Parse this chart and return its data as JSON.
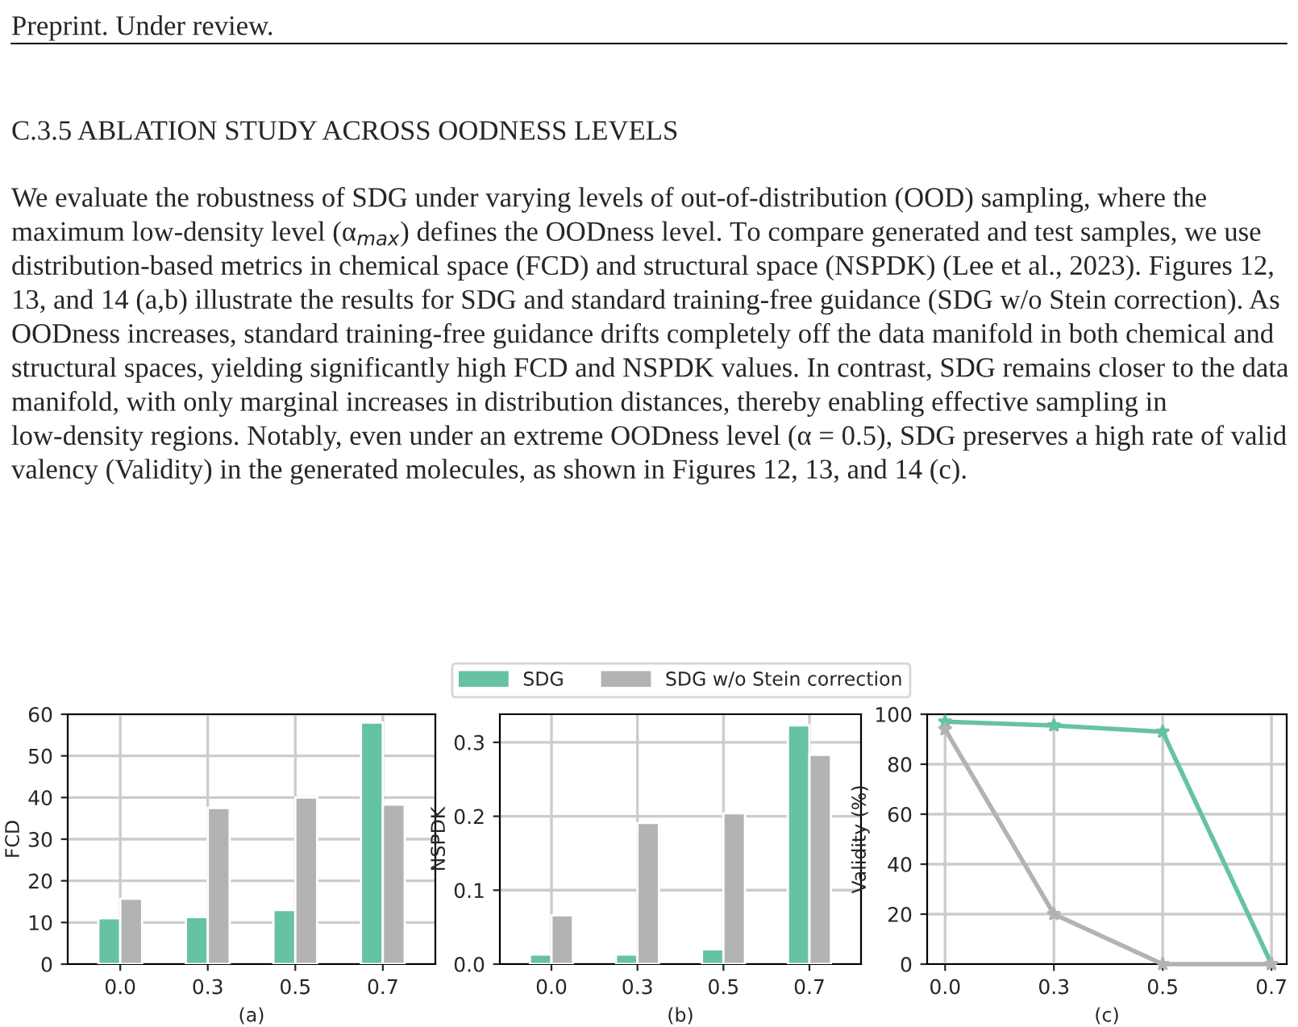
{
  "chart_data": [
    {
      "type": "bar",
      "xlabel": "(a)",
      "ylabel": "FCD",
      "categories": [
        "0.0",
        "0.3",
        "0.5",
        "0.7"
      ],
      "ylim": [
        0,
        60
      ],
      "yticks": [
        0,
        10,
        20,
        30,
        40,
        50,
        60
      ],
      "grid": true,
      "legend": "top right",
      "series": [
        {
          "name": "SDG",
          "color": "#66c2a5",
          "values": [
            11,
            11.3,
            13,
            58
          ]
        },
        {
          "name": "SDG w/o Stein correction",
          "color": "#b3b3b3",
          "values": [
            15.7,
            37.5,
            40,
            38.3
          ]
        }
      ],
      "annotations": [
        "Preprint. Under review.",
        "C.3.5 ABLATION STUDY ACROSS OODNESS LEVELS",
        "We evaluate the robustness of SDG under varying levels of out-of-distribution (OOD) sampling, where the maximum low-density level (α$_{max}$) defines the OODness level. To compare generated and test samples, we use distribution-based metrics in chemical space (FCD) and structural space (NSPDK) (Lee et al., 2023). Figures 12, 13, and 14 (a,b) illustrate the results for SDG and standard training-free guidance (SDG w/o Stein correction). As OODness increases, standard training-free guidance drifts completely off the data manifold in both chemical and structural spaces, yielding significantly high FCD and NSPDK values. In contrast, SDG remains closer to the data manifold, with only marginal increases in distribution distances, thereby enabling effective sampling in low-density regions. Notably, even under an extreme OODness level (α = 0.5), SDG preserves a high rate of valid valency (Validity) in the generated molecules, as shown in Figures 12, 13, and 14 (c)."
      ]
    },
    {
      "type": "bar",
      "xlabel": "(b)",
      "ylabel": "NSPDK",
      "categories": [
        "0.0",
        "0.3",
        "0.5",
        "0.7"
      ],
      "ylim": [
        0,
        0.338
      ],
      "yticks": [
        {
          "value": 0,
          "label": "0.0"
        },
        0.1,
        0.2,
        0.3
      ],
      "grid": true,
      "series": [
        {
          "color": "#66c2a5",
          "values": [
            0.013,
            0.013,
            0.02,
            0.323
          ]
        },
        {
          "color": "#b3b3b3",
          "values": [
            0.066,
            0.191,
            0.204,
            0.283
          ]
        }
      ]
    },
    {
      "type": "line",
      "xlabel": "(c)",
      "ylabel": "Validity (%)",
      "categories": [
        "0.0",
        "0.3",
        "0.5",
        "0.7"
      ],
      "ylim": [
        0,
        100
      ],
      "yticks": [
        0,
        20,
        40,
        60,
        80,
        100
      ],
      "grid": true,
      "marker": "star",
      "series": [
        {
          "color": "#66c2a5",
          "values": [
            97,
            95.5,
            93,
            0
          ]
        },
        {
          "color": "#b3b3b3",
          "values": [
            94,
            20,
            0,
            0
          ]
        }
      ]
    }
  ]
}
